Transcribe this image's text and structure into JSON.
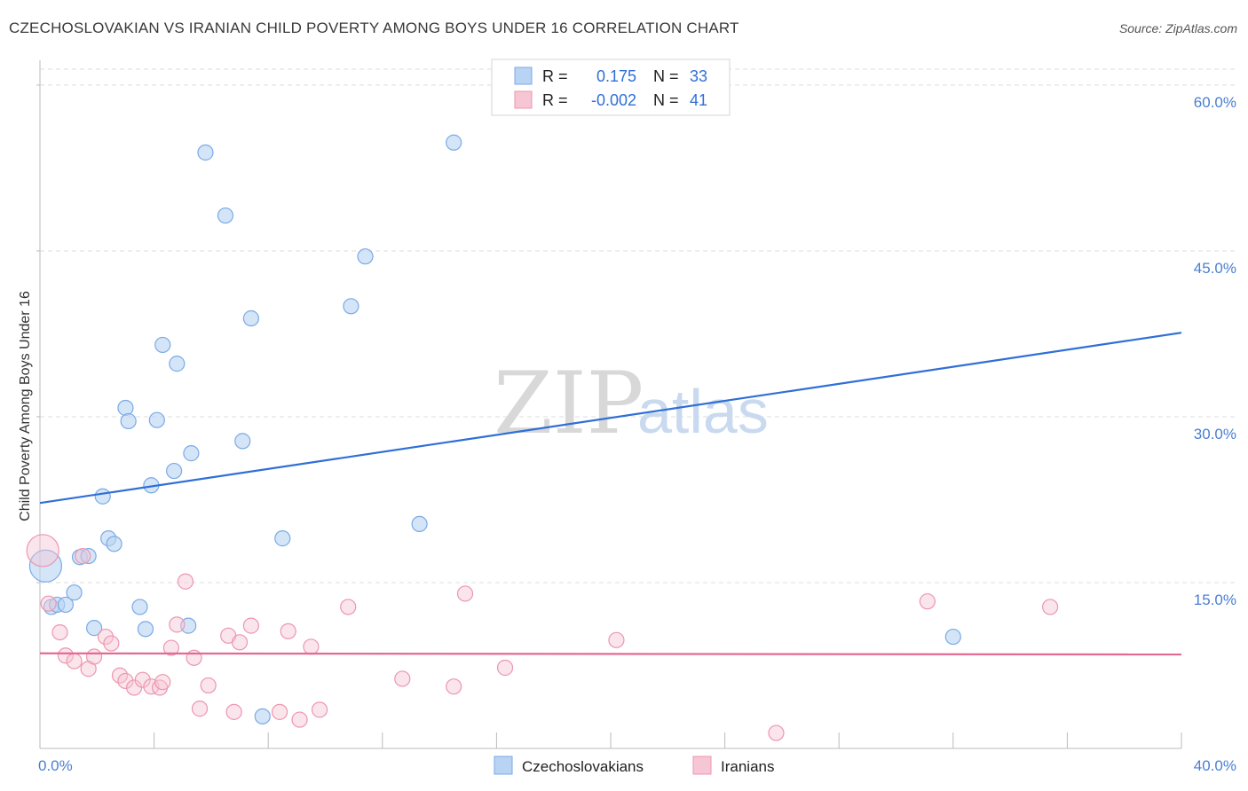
{
  "header": {
    "title": "CZECHOSLOVAKIAN VS IRANIAN CHILD POVERTY AMONG BOYS UNDER 16 CORRELATION CHART",
    "source": "Source: ZipAtlas.com"
  },
  "watermark": {
    "zip": "ZIP",
    "atlas": "atlas"
  },
  "legend": {
    "rows": [
      {
        "r_label": "R =",
        "r_value": "0.175",
        "n_label": "N =",
        "n_value": "33"
      },
      {
        "r_label": "R =",
        "r_value": "-0.002",
        "n_label": "N =",
        "n_value": "41"
      }
    ]
  },
  "bottom_legend": {
    "items": [
      "Czechoslovakians",
      "Iranians"
    ]
  },
  "colors": {
    "czech_fill": "#b8d3f4",
    "czech_stroke": "#7aaae6",
    "czech_line": "#2f6fd6",
    "iran_fill": "#f7c6d4",
    "iran_stroke": "#ec96b0",
    "iran_line": "#e36a93",
    "grid": "#dedede",
    "axis": "#bbbbbb",
    "tick_label": "#4a7fd0"
  },
  "chart_data": {
    "type": "scatter",
    "title": "CZECHOSLOVAKIAN VS IRANIAN CHILD POVERTY AMONG BOYS UNDER 16 CORRELATION CHART",
    "xlabel": "",
    "ylabel": "Child Poverty Among Boys Under 16",
    "xlim": [
      0,
      40
    ],
    "ylim": [
      0,
      62
    ],
    "x_tick_labels": [
      "0.0%",
      "40.0%"
    ],
    "y_ticks": [
      15,
      30,
      45,
      60
    ],
    "y_tick_labels": [
      "15.0%",
      "30.0%",
      "45.0%",
      "60.0%"
    ],
    "grid": true,
    "legend_position": "top-center",
    "series": [
      {
        "name": "Czechoslovakians",
        "r": 0.175,
        "n": 33,
        "trend": {
          "x": [
            0,
            40
          ],
          "y": [
            22.2,
            37.6
          ]
        },
        "points": [
          {
            "x": 0.2,
            "y": 16.5,
            "big": true
          },
          {
            "x": 0.4,
            "y": 12.8
          },
          {
            "x": 0.6,
            "y": 13.0
          },
          {
            "x": 0.9,
            "y": 13.0
          },
          {
            "x": 1.2,
            "y": 14.1
          },
          {
            "x": 1.4,
            "y": 17.3
          },
          {
            "x": 1.7,
            "y": 17.4
          },
          {
            "x": 1.9,
            "y": 10.9
          },
          {
            "x": 2.2,
            "y": 22.8
          },
          {
            "x": 2.4,
            "y": 19.0
          },
          {
            "x": 2.6,
            "y": 18.5
          },
          {
            "x": 3.0,
            "y": 30.8
          },
          {
            "x": 3.1,
            "y": 29.6
          },
          {
            "x": 3.5,
            "y": 12.8
          },
          {
            "x": 3.7,
            "y": 10.8
          },
          {
            "x": 3.9,
            "y": 23.8
          },
          {
            "x": 4.1,
            "y": 29.7
          },
          {
            "x": 4.3,
            "y": 36.5
          },
          {
            "x": 4.7,
            "y": 25.1
          },
          {
            "x": 4.8,
            "y": 34.8
          },
          {
            "x": 5.2,
            "y": 11.1
          },
          {
            "x": 5.3,
            "y": 26.7
          },
          {
            "x": 5.8,
            "y": 53.9
          },
          {
            "x": 6.5,
            "y": 48.2
          },
          {
            "x": 7.1,
            "y": 27.8
          },
          {
            "x": 7.4,
            "y": 38.9
          },
          {
            "x": 7.8,
            "y": 2.9
          },
          {
            "x": 8.5,
            "y": 19.0
          },
          {
            "x": 10.9,
            "y": 40.0
          },
          {
            "x": 11.4,
            "y": 44.5
          },
          {
            "x": 13.3,
            "y": 20.3
          },
          {
            "x": 14.5,
            "y": 54.8
          },
          {
            "x": 32.0,
            "y": 10.1
          }
        ]
      },
      {
        "name": "Iranians",
        "r": -0.002,
        "n": 41,
        "trend": {
          "x": [
            0,
            40
          ],
          "y": [
            8.6,
            8.5
          ]
        },
        "points": [
          {
            "x": 0.1,
            "y": 17.9,
            "big": true
          },
          {
            "x": 0.3,
            "y": 13.1
          },
          {
            "x": 0.7,
            "y": 10.5
          },
          {
            "x": 0.9,
            "y": 8.4
          },
          {
            "x": 1.2,
            "y": 7.9
          },
          {
            "x": 1.5,
            "y": 17.4
          },
          {
            "x": 1.7,
            "y": 7.2
          },
          {
            "x": 1.9,
            "y": 8.3
          },
          {
            "x": 2.3,
            "y": 10.1
          },
          {
            "x": 2.5,
            "y": 9.5
          },
          {
            "x": 2.8,
            "y": 6.6
          },
          {
            "x": 3.0,
            "y": 6.1
          },
          {
            "x": 3.3,
            "y": 5.5
          },
          {
            "x": 3.6,
            "y": 6.2
          },
          {
            "x": 3.9,
            "y": 5.6
          },
          {
            "x": 4.2,
            "y": 5.5
          },
          {
            "x": 4.3,
            "y": 6.0
          },
          {
            "x": 4.6,
            "y": 9.1
          },
          {
            "x": 4.8,
            "y": 11.2
          },
          {
            "x": 5.1,
            "y": 15.1
          },
          {
            "x": 5.4,
            "y": 8.2
          },
          {
            "x": 5.6,
            "y": 3.6
          },
          {
            "x": 5.9,
            "y": 5.7
          },
          {
            "x": 6.6,
            "y": 10.2
          },
          {
            "x": 6.8,
            "y": 3.3
          },
          {
            "x": 7.0,
            "y": 9.6
          },
          {
            "x": 7.4,
            "y": 11.1
          },
          {
            "x": 8.4,
            "y": 3.3
          },
          {
            "x": 8.7,
            "y": 10.6
          },
          {
            "x": 9.1,
            "y": 2.6
          },
          {
            "x": 9.5,
            "y": 9.2
          },
          {
            "x": 9.8,
            "y": 3.5
          },
          {
            "x": 10.8,
            "y": 12.8
          },
          {
            "x": 12.7,
            "y": 6.3
          },
          {
            "x": 14.5,
            "y": 5.6
          },
          {
            "x": 14.9,
            "y": 14.0
          },
          {
            "x": 16.3,
            "y": 7.3
          },
          {
            "x": 20.2,
            "y": 9.8
          },
          {
            "x": 25.8,
            "y": 1.4
          },
          {
            "x": 31.1,
            "y": 13.3
          },
          {
            "x": 35.4,
            "y": 12.8
          }
        ]
      }
    ]
  }
}
